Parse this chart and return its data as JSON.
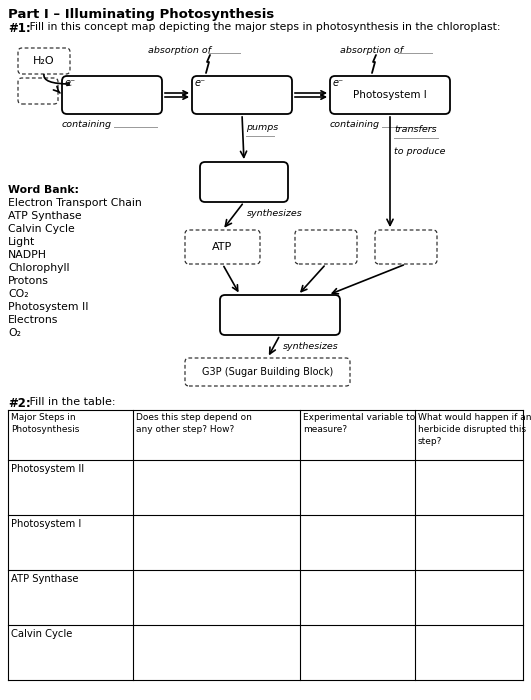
{
  "title": "Part I – Illuminating Photosynthesis",
  "q1_label": "#1:",
  "q1_text": " Fill in this concept map depicting the major steps in photosynthesis in the chloroplast:",
  "q2_label": "#2:",
  "q2_text": " Fill in the table:",
  "word_bank_title": "Word Bank:",
  "word_bank": [
    "Electron Transport Chain",
    "ATP Synthase",
    "Calvin Cycle",
    "Light",
    "NADPH",
    "Chlorophyll",
    "Protons",
    "CO₂",
    "Photosystem II",
    "Electrons",
    "O₂"
  ],
  "table_headers": [
    "Major Steps in\nPhotosynthesis",
    "Does this step depend on\nany other step? How?",
    "Experimental variable to\nmeasure?",
    "What would happen if an\nherbicide disrupted this\nstep?"
  ],
  "table_rows": [
    "Photosystem II",
    "Photosystem I",
    "ATP Synthase",
    "Calvin Cycle"
  ],
  "bg_color": "#ffffff",
  "text_color": "#000000"
}
